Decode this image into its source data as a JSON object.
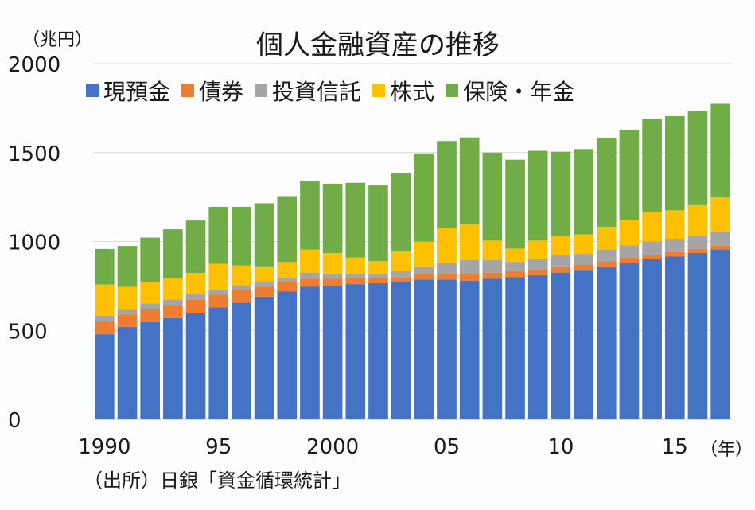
{
  "chart_data": {
    "type": "bar",
    "stacked": true,
    "title": "個人金融資産の推移",
    "y_unit": "（兆円）",
    "x_unit": "（年）",
    "source": "（出所）日銀「資金循環統計」",
    "ylim": [
      0,
      2000
    ],
    "yticks": [
      0,
      500,
      1000,
      1500,
      2000
    ],
    "grid": true,
    "legend_position": "top",
    "x_tick_labels": [
      {
        "year": 1990,
        "label": "1990"
      },
      {
        "year": 1995,
        "label": "95"
      },
      {
        "year": 2000,
        "label": "2000"
      },
      {
        "year": 2005,
        "label": "05"
      },
      {
        "year": 2010,
        "label": "10"
      },
      {
        "year": 2015,
        "label": "15"
      }
    ],
    "categories": [
      1990,
      1991,
      1992,
      1993,
      1994,
      1995,
      1996,
      1997,
      1998,
      1999,
      2000,
      2001,
      2002,
      2003,
      2004,
      2005,
      2006,
      2007,
      2008,
      2009,
      2010,
      2011,
      2012,
      2013,
      2014,
      2015,
      2016,
      2017
    ],
    "series": [
      {
        "name": "現預金",
        "color": "#4472c4",
        "values": [
          478,
          520,
          547,
          569,
          598,
          630,
          655,
          690,
          720,
          745,
          750,
          760,
          765,
          770,
          785,
          785,
          780,
          790,
          800,
          810,
          825,
          840,
          860,
          880,
          900,
          915,
          935,
          955
        ]
      },
      {
        "name": "債券",
        "color": "#ed7d31",
        "values": [
          70,
          70,
          75,
          75,
          75,
          70,
          70,
          55,
          50,
          45,
          40,
          35,
          30,
          30,
          30,
          30,
          35,
          35,
          35,
          35,
          35,
          30,
          28,
          28,
          25,
          25,
          24,
          24
        ]
      },
      {
        "name": "投資信託",
        "color": "#a5a5a5",
        "values": [
          35,
          30,
          30,
          30,
          30,
          30,
          30,
          25,
          25,
          35,
          30,
          25,
          25,
          35,
          45,
          65,
          80,
          70,
          50,
          60,
          65,
          60,
          65,
          70,
          75,
          75,
          70,
          75
        ]
      },
      {
        "name": "株式",
        "color": "#ffc000",
        "values": [
          175,
          125,
          120,
          120,
          120,
          145,
          110,
          90,
          90,
          130,
          115,
          90,
          70,
          110,
          140,
          195,
          200,
          110,
          75,
          100,
          105,
          110,
          130,
          145,
          165,
          160,
          175,
          195
        ]
      },
      {
        "name": "保険・年金",
        "color": "#70ad47",
        "values": [
          200,
          230,
          250,
          275,
          295,
          320,
          330,
          355,
          370,
          385,
          390,
          420,
          425,
          440,
          495,
          490,
          490,
          495,
          500,
          505,
          475,
          480,
          500,
          505,
          525,
          530,
          530,
          525
        ]
      }
    ]
  }
}
